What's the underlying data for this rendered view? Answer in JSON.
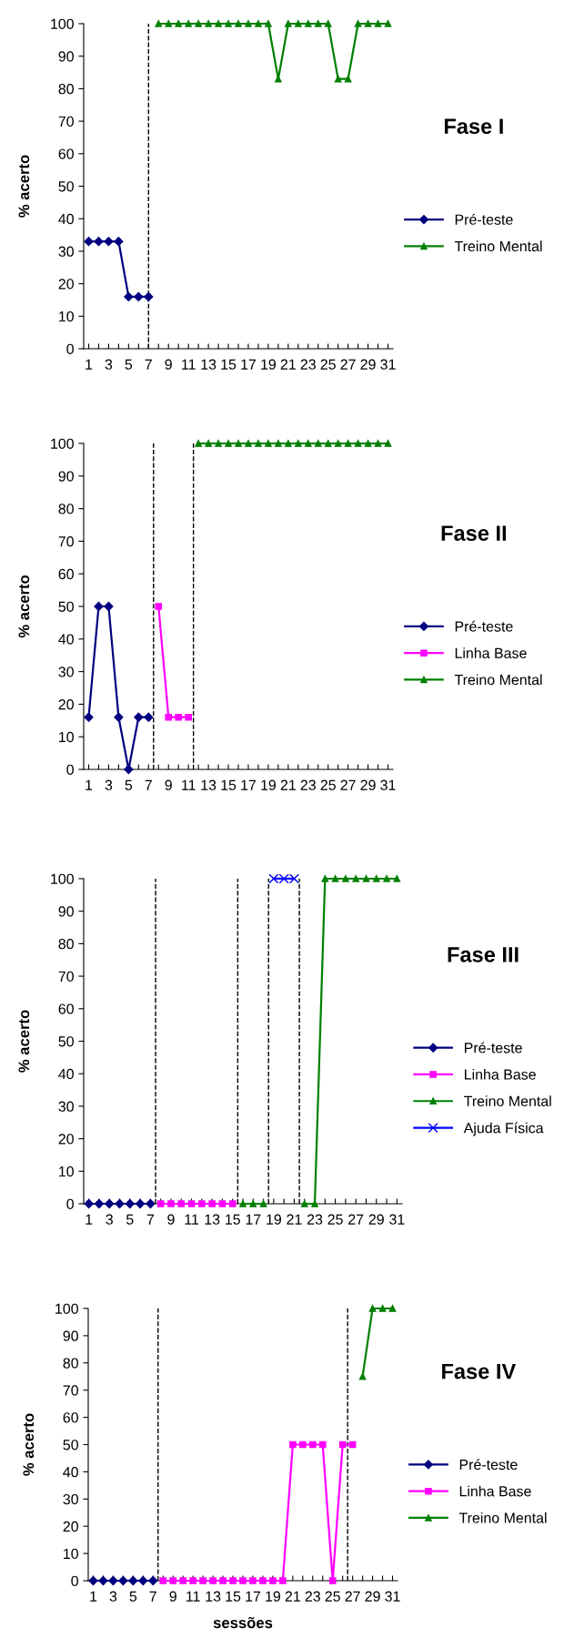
{
  "chart_data": [
    {
      "type": "line",
      "legend_title": "Fase I",
      "ylabel": "% acerto",
      "x": [
        1,
        2,
        3,
        4,
        5,
        6,
        7,
        8,
        9,
        10,
        11,
        12,
        13,
        14,
        15,
        16,
        17,
        18,
        19,
        20,
        21,
        22,
        23,
        24,
        25,
        26,
        27,
        28,
        29,
        30,
        31
      ],
      "xlim": [
        0.5,
        31.5
      ],
      "xticks": [
        1,
        {
          "value": 2,
          "label": null
        },
        3,
        {
          "value": 4,
          "label": null
        },
        5,
        {
          "value": 6,
          "label": null
        },
        7,
        {
          "value": 8,
          "label": null
        },
        9,
        {
          "value": 10,
          "label": null
        },
        11,
        {
          "value": 12,
          "label": null
        },
        13,
        {
          "value": 14,
          "label": null
        },
        15,
        {
          "value": 16,
          "label": null
        },
        17,
        {
          "value": 18,
          "label": null
        },
        19,
        {
          "value": 20,
          "label": null
        },
        21,
        {
          "value": 22,
          "label": null
        },
        23,
        {
          "value": 24,
          "label": null
        },
        25,
        {
          "value": 26,
          "label": null
        },
        27,
        {
          "value": 28,
          "label": null
        },
        29,
        {
          "value": 30,
          "label": null
        },
        31
      ],
      "ylim": [
        0,
        100
      ],
      "yticks": [
        0,
        10,
        20,
        30,
        40,
        50,
        60,
        70,
        80,
        90,
        100
      ],
      "grid": false,
      "legend": "right",
      "series": [
        {
          "name": "Pré-teste",
          "color": "#000080",
          "marker": "diamond",
          "values": [
            33,
            33,
            33,
            33,
            16,
            16,
            16,
            null,
            null,
            null,
            null,
            null,
            null,
            null,
            null,
            null,
            null,
            null,
            null,
            null,
            null,
            null,
            null,
            null,
            null,
            null,
            null,
            null,
            null,
            null,
            null
          ]
        },
        {
          "name": "Treino Mental",
          "color": "#008000",
          "marker": "triangle",
          "values": [
            null,
            null,
            null,
            null,
            null,
            null,
            null,
            100,
            100,
            100,
            100,
            100,
            100,
            100,
            100,
            100,
            100,
            100,
            100,
            83,
            100,
            100,
            100,
            100,
            100,
            83,
            83,
            100,
            100,
            100,
            100
          ]
        }
      ],
      "ref_lines": [
        {
          "axis": "x",
          "value": 7,
          "color": "#000000",
          "line_style": "dashed"
        }
      ]
    },
    {
      "type": "line",
      "legend_title": "Fase II",
      "ylabel": "% acerto",
      "x": [
        1,
        2,
        3,
        4,
        5,
        6,
        7,
        8,
        9,
        10,
        11,
        12,
        13,
        14,
        15,
        16,
        17,
        18,
        19,
        20,
        21,
        22,
        23,
        24,
        25,
        26,
        27,
        28,
        29,
        30,
        31
      ],
      "xlim": [
        0.5,
        31.5
      ],
      "xticks": [
        1,
        {
          "value": 2,
          "label": null
        },
        3,
        {
          "value": 4,
          "label": null
        },
        5,
        {
          "value": 6,
          "label": null
        },
        7,
        {
          "value": 8,
          "label": null
        },
        9,
        {
          "value": 10,
          "label": null
        },
        11,
        {
          "value": 12,
          "label": null
        },
        13,
        {
          "value": 14,
          "label": null
        },
        15,
        {
          "value": 16,
          "label": null
        },
        17,
        {
          "value": 18,
          "label": null
        },
        19,
        {
          "value": 20,
          "label": null
        },
        21,
        {
          "value": 22,
          "label": null
        },
        23,
        {
          "value": 24,
          "label": null
        },
        25,
        {
          "value": 26,
          "label": null
        },
        27,
        {
          "value": 28,
          "label": null
        },
        29,
        {
          "value": 30,
          "label": null
        },
        31
      ],
      "ylim": [
        0,
        100
      ],
      "yticks": [
        0,
        10,
        20,
        30,
        40,
        50,
        60,
        70,
        80,
        90,
        100
      ],
      "grid": false,
      "legend": "right",
      "series": [
        {
          "name": "Pré-teste",
          "color": "#000080",
          "marker": "diamond",
          "values": [
            16,
            50,
            50,
            16,
            0,
            16,
            16,
            null,
            null,
            null,
            null,
            null,
            null,
            null,
            null,
            null,
            null,
            null,
            null,
            null,
            null,
            null,
            null,
            null,
            null,
            null,
            null,
            null,
            null,
            null,
            null
          ]
        },
        {
          "name": "Linha Base",
          "color": "#ff00ff",
          "marker": "square",
          "values": [
            null,
            null,
            null,
            null,
            null,
            null,
            null,
            50,
            16,
            16,
            16,
            null,
            null,
            null,
            null,
            null,
            null,
            null,
            null,
            null,
            null,
            null,
            null,
            null,
            null,
            null,
            null,
            null,
            null,
            null,
            null
          ]
        },
        {
          "name": "Treino Mental",
          "color": "#008000",
          "marker": "triangle",
          "values": [
            null,
            null,
            null,
            null,
            null,
            null,
            null,
            null,
            null,
            null,
            null,
            100,
            100,
            100,
            100,
            100,
            100,
            100,
            100,
            100,
            100,
            100,
            100,
            100,
            100,
            100,
            100,
            100,
            100,
            100,
            100
          ]
        }
      ],
      "ref_lines": [
        {
          "axis": "x",
          "value": 7.5,
          "color": "#000000",
          "line_style": "dashed"
        },
        {
          "axis": "x",
          "value": 11.5,
          "color": "#000000",
          "line_style": "dashed"
        }
      ]
    },
    {
      "type": "line",
      "legend_title": "Fase III",
      "ylabel": "% acerto",
      "x": [
        1,
        2,
        3,
        4,
        5,
        6,
        7,
        8,
        9,
        10,
        11,
        12,
        13,
        14,
        15,
        16,
        17,
        18,
        19,
        20,
        21,
        22,
        23,
        24,
        25,
        26,
        27,
        28,
        29,
        30,
        31
      ],
      "xlim": [
        0.5,
        31.5
      ],
      "xticks": [
        1,
        {
          "value": 2,
          "label": null
        },
        3,
        {
          "value": 4,
          "label": null
        },
        5,
        {
          "value": 6,
          "label": null
        },
        7,
        {
          "value": 8,
          "label": null
        },
        9,
        {
          "value": 10,
          "label": null
        },
        11,
        {
          "value": 12,
          "label": null
        },
        13,
        {
          "value": 14,
          "label": null
        },
        15,
        {
          "value": 16,
          "label": null
        },
        17,
        {
          "value": 18,
          "label": null
        },
        19,
        {
          "value": 20,
          "label": null
        },
        21,
        {
          "value": 22,
          "label": null
        },
        23,
        {
          "value": 24,
          "label": null
        },
        25,
        {
          "value": 26,
          "label": null
        },
        27,
        {
          "value": 28,
          "label": null
        },
        29,
        {
          "value": 30,
          "label": null
        },
        31
      ],
      "ylim": [
        0,
        100
      ],
      "yticks": [
        0,
        10,
        20,
        30,
        40,
        50,
        60,
        70,
        80,
        90,
        100
      ],
      "grid": false,
      "legend": "right",
      "series": [
        {
          "name": "Pré-teste",
          "color": "#000080",
          "marker": "diamond",
          "values": [
            0,
            0,
            0,
            0,
            0,
            0,
            0,
            null,
            null,
            null,
            null,
            null,
            null,
            null,
            null,
            null,
            null,
            null,
            null,
            null,
            null,
            null,
            null,
            null,
            null,
            null,
            null,
            null,
            null,
            null,
            null
          ]
        },
        {
          "name": "Linha Base",
          "color": "#ff00ff",
          "marker": "square",
          "values": [
            null,
            null,
            null,
            null,
            null,
            null,
            null,
            0,
            0,
            0,
            0,
            0,
            0,
            0,
            0,
            null,
            null,
            null,
            null,
            null,
            null,
            null,
            null,
            null,
            null,
            null,
            null,
            null,
            null,
            null,
            null
          ]
        },
        {
          "name": "Treino Mental",
          "color": "#008000",
          "marker": "triangle",
          "values": [
            null,
            null,
            null,
            null,
            null,
            null,
            null,
            null,
            null,
            null,
            null,
            null,
            null,
            null,
            null,
            0,
            0,
            0,
            null,
            null,
            null,
            0,
            0,
            100,
            100,
            100,
            100,
            100,
            100,
            100,
            100
          ]
        },
        {
          "name": "Ajuda Física",
          "color": "#0000ff",
          "marker": "cross",
          "values": [
            null,
            null,
            null,
            null,
            null,
            null,
            null,
            null,
            null,
            null,
            null,
            null,
            null,
            null,
            null,
            null,
            null,
            null,
            100,
            100,
            100,
            null,
            null,
            null,
            null,
            null,
            null,
            null,
            null,
            null,
            null
          ]
        }
      ],
      "ref_lines": [
        {
          "axis": "x",
          "value": 7.5,
          "color": "#000000",
          "line_style": "dashed"
        },
        {
          "axis": "x",
          "value": 15.5,
          "color": "#000000",
          "line_style": "dashed"
        },
        {
          "axis": "x",
          "value": 18.5,
          "color": "#000000",
          "line_style": "dashed"
        },
        {
          "axis": "x",
          "value": 21.5,
          "color": "#000000",
          "line_style": "dashed"
        }
      ]
    },
    {
      "type": "line",
      "legend_title": "Fase IV",
      "xlabel": "sessões",
      "ylabel": "% acerto",
      "x": [
        1,
        2,
        3,
        4,
        5,
        6,
        7,
        8,
        9,
        10,
        11,
        12,
        13,
        14,
        15,
        16,
        17,
        18,
        19,
        20,
        21,
        22,
        23,
        24,
        25,
        26,
        27,
        28,
        29,
        30,
        31
      ],
      "xlim": [
        0.5,
        31.5
      ],
      "xticks": [
        1,
        {
          "value": 2,
          "label": null
        },
        3,
        {
          "value": 4,
          "label": null
        },
        5,
        {
          "value": 6,
          "label": null
        },
        7,
        {
          "value": 8,
          "label": null
        },
        9,
        {
          "value": 10,
          "label": null
        },
        11,
        {
          "value": 12,
          "label": null
        },
        13,
        {
          "value": 14,
          "label": null
        },
        15,
        {
          "value": 16,
          "label": null
        },
        17,
        {
          "value": 18,
          "label": null
        },
        19,
        {
          "value": 20,
          "label": null
        },
        21,
        {
          "value": 22,
          "label": null
        },
        23,
        {
          "value": 24,
          "label": null
        },
        25,
        {
          "value": 26,
          "label": null
        },
        27,
        {
          "value": 28,
          "label": null
        },
        29,
        {
          "value": 30,
          "label": null
        },
        31
      ],
      "ylim": [
        0,
        100
      ],
      "yticks": [
        0,
        10,
        20,
        30,
        40,
        50,
        60,
        70,
        80,
        90,
        100
      ],
      "grid": false,
      "legend": "right",
      "series": [
        {
          "name": "Pré-teste",
          "color": "#000080",
          "marker": "diamond",
          "values": [
            0,
            0,
            0,
            0,
            0,
            0,
            0,
            null,
            null,
            null,
            null,
            null,
            null,
            null,
            null,
            null,
            null,
            null,
            null,
            null,
            null,
            null,
            null,
            null,
            null,
            null,
            null,
            null,
            null,
            null,
            null
          ]
        },
        {
          "name": "Linha Base",
          "color": "#ff00ff",
          "marker": "square",
          "values": [
            null,
            null,
            null,
            null,
            null,
            null,
            null,
            0,
            0,
            0,
            0,
            0,
            0,
            0,
            0,
            0,
            0,
            0,
            0,
            0,
            50,
            50,
            50,
            50,
            0,
            50,
            50,
            null,
            null,
            null,
            null
          ]
        },
        {
          "name": "Treino Mental",
          "color": "#008000",
          "marker": "triangle",
          "values": [
            null,
            null,
            null,
            null,
            null,
            null,
            null,
            null,
            null,
            null,
            null,
            null,
            null,
            null,
            null,
            null,
            null,
            null,
            null,
            null,
            null,
            null,
            null,
            null,
            null,
            null,
            null,
            75,
            100,
            100,
            100
          ]
        }
      ],
      "ref_lines": [
        {
          "axis": "x",
          "value": 7.5,
          "color": "#000000",
          "line_style": "dashed"
        },
        {
          "axis": "x",
          "value": 26.5,
          "color": "#000000",
          "line_style": "dashed"
        }
      ]
    }
  ]
}
